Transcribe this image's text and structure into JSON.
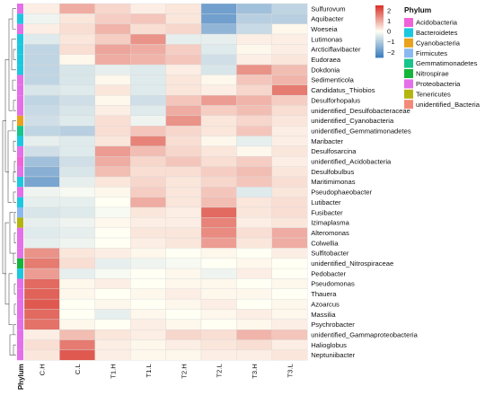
{
  "chart_data": {
    "type": "heatmap",
    "columns": [
      "C.H",
      "C.L",
      "T1.H",
      "T1.L",
      "T2.H",
      "T2.L",
      "T3.H",
      "T3.L"
    ],
    "annotation_label": "Phylum",
    "rows": [
      "Sulfurovum",
      "Aquibacter",
      "Woeseia",
      "Lutimonas",
      "Arcticiflavibacter",
      "Eudoraea",
      "Dokdonia",
      "Sedimenticola",
      "Candidatus_Thiobios",
      "Desulforhopalus",
      "unidentified_Desulfobacteraceae",
      "unidentified_Cyanobacteria",
      "unidentified_Gemmatimonadetes",
      "Maribacter",
      "Desulfosarcina",
      "unidentified_Acidobacteria",
      "Desulfobulbus",
      "Maritimimonas",
      "Pseudophaeobacter",
      "Lutibacter",
      "Fusibacter",
      "Izimaplasma",
      "Alteromonas",
      "Colwellia",
      "Sulfitobacter",
      "unidentified_Nitrospiraceae",
      "Pedobacter",
      "Pseudomonas",
      "Thauera",
      "Azoarcus",
      "Massilia",
      "Psychrobacter",
      "unidentified_Gammaproteobacteria",
      "Halioglobus",
      "Neptuniibacter"
    ],
    "values": [
      [
        0.2,
        1.0,
        0.5,
        0.2,
        0.3,
        -1.8,
        -1.2,
        -0.8
      ],
      [
        -0.2,
        0.3,
        0.6,
        0.7,
        0.3,
        -1.8,
        -0.9,
        -0.9
      ],
      [
        0.2,
        0.4,
        0.9,
        0.4,
        0.5,
        -1.4,
        -0.7,
        0.1
      ],
      [
        -0.4,
        0.3,
        0.6,
        1.3,
        -0.3,
        -0.3,
        0.2,
        0.2
      ],
      [
        -0.8,
        0.4,
        1.1,
        1.0,
        0.6,
        -0.4,
        0.1,
        0.2
      ],
      [
        -0.8,
        0.1,
        1.0,
        0.9,
        0.7,
        -0.6,
        0.2,
        0.3
      ],
      [
        -0.8,
        -0.5,
        -0.3,
        -0.4,
        0.2,
        -0.5,
        1.3,
        0.8
      ],
      [
        -0.8,
        -0.5,
        0.1,
        -0.4,
        0.3,
        0.1,
        0.7,
        0.9
      ],
      [
        -0.5,
        -0.4,
        0.3,
        -0.4,
        0.3,
        0.2,
        0.5,
        1.6
      ],
      [
        -0.8,
        -0.6,
        0.1,
        -0.6,
        0.7,
        1.2,
        0.9,
        0.6
      ],
      [
        -0.7,
        -0.5,
        0.2,
        -0.4,
        1.0,
        0.6,
        0.8,
        0.4
      ],
      [
        -0.6,
        -0.4,
        0.4,
        -0.2,
        1.3,
        0.3,
        0.5,
        0.3
      ],
      [
        -0.8,
        -0.9,
        0.4,
        0.7,
        0.5,
        0.3,
        0.7,
        0.2
      ],
      [
        -0.3,
        -0.4,
        0.3,
        1.5,
        0.4,
        0.1,
        -0.3,
        0.2
      ],
      [
        -0.6,
        -0.4,
        1.2,
        0.8,
        0.5,
        0.3,
        0.1,
        0.3
      ],
      [
        -1.2,
        -0.6,
        1.0,
        0.5,
        0.7,
        0.4,
        0.6,
        0.2
      ],
      [
        -1.5,
        -0.5,
        0.8,
        0.4,
        0.4,
        0.6,
        0.8,
        0.3
      ],
      [
        -1.7,
        -0.3,
        0.3,
        0.5,
        0.3,
        0.5,
        0.7,
        0.4
      ],
      [
        -0.2,
        -0.1,
        0.1,
        0.6,
        0.3,
        0.7,
        -0.4,
        0.3
      ],
      [
        -0.3,
        -0.3,
        0.0,
        1.0,
        0.3,
        0.8,
        0.3,
        0.4
      ],
      [
        -0.5,
        -0.4,
        -0.1,
        0.3,
        0.2,
        1.8,
        0.3,
        0.4
      ],
      [
        -0.3,
        -0.2,
        0.1,
        0.2,
        0.2,
        1.5,
        0.2,
        0.3
      ],
      [
        -0.4,
        -0.3,
        0.0,
        0.3,
        0.3,
        1.4,
        0.4,
        1.0
      ],
      [
        -0.3,
        -0.2,
        0.0,
        0.2,
        0.3,
        1.2,
        0.3,
        1.0
      ],
      [
        1.3,
        0.3,
        0.2,
        0.1,
        0.0,
        0.1,
        0.0,
        0.2
      ],
      [
        1.6,
        0.4,
        -0.3,
        -0.2,
        -0.1,
        0.0,
        0.1,
        0.0
      ],
      [
        1.2,
        -0.3,
        -0.1,
        0.0,
        0.1,
        -0.2,
        0.2,
        0.0
      ],
      [
        1.8,
        0.1,
        0.2,
        0.0,
        0.1,
        0.1,
        0.0,
        0.1
      ],
      [
        1.9,
        0.1,
        0.0,
        0.1,
        0.2,
        0.1,
        0.1,
        0.0
      ],
      [
        2.0,
        0.0,
        0.1,
        0.0,
        0.1,
        0.2,
        0.0,
        0.1
      ],
      [
        1.8,
        0.0,
        -0.3,
        0.1,
        0.0,
        0.1,
        0.2,
        0.1
      ],
      [
        1.7,
        0.1,
        0.0,
        0.2,
        0.1,
        0.0,
        0.1,
        0.2
      ],
      [
        0.2,
        0.8,
        0.3,
        0.2,
        0.5,
        0.4,
        0.9,
        0.7
      ],
      [
        0.4,
        1.6,
        0.2,
        0.1,
        0.2,
        0.3,
        0.4,
        0.2
      ],
      [
        0.3,
        2.0,
        0.2,
        0.1,
        0.1,
        0.2,
        0.2,
        0.3
      ]
    ],
    "row_phylum": [
      "Proteobacteria",
      "Bacteroidetes",
      "Proteobacteria",
      "Bacteroidetes",
      "Bacteroidetes",
      "Bacteroidetes",
      "Bacteroidetes",
      "Proteobacteria",
      "Proteobacteria",
      "Proteobacteria",
      "Proteobacteria",
      "Cyanobacteria",
      "Gemmatimonadetes",
      "Bacteroidetes",
      "Proteobacteria",
      "Acidobacteria",
      "Proteobacteria",
      "Bacteroidetes",
      "Proteobacteria",
      "Bacteroidetes",
      "Firmicutes",
      "Tenericutes",
      "Proteobacteria",
      "Proteobacteria",
      "Proteobacteria",
      "Nitrospirae",
      "Bacteroidetes",
      "Proteobacteria",
      "Proteobacteria",
      "Proteobacteria",
      "Proteobacteria",
      "Proteobacteria",
      "Proteobacteria",
      "Proteobacteria",
      "Proteobacteria"
    ],
    "color_scale": {
      "min": -2.5,
      "max": 2.5,
      "low": "#3a7bbf",
      "mid": "#fffff4",
      "high": "#d73027",
      "ticks": [
        2,
        1,
        0,
        -1,
        -2
      ],
      "tick_labels": [
        "2",
        "1",
        "0",
        "−1",
        "−2"
      ]
    },
    "legend": {
      "title": "Phylum",
      "items": [
        {
          "name": "Acidobacteria",
          "color": "#f062d8"
        },
        {
          "name": "Bacteroidetes",
          "color": "#1cc7e0"
        },
        {
          "name": "Cyanobacteria",
          "color": "#e8a21c"
        },
        {
          "name": "Firmicutes",
          "color": "#8ab8f0"
        },
        {
          "name": "Gemmatimonadetes",
          "color": "#17c48a"
        },
        {
          "name": "Nitrospirae",
          "color": "#14b53a"
        },
        {
          "name": "Proteobacteria",
          "color": "#e46fe8"
        },
        {
          "name": "Tenericutes",
          "color": "#b3b40e"
        },
        {
          "name": "unidentified_Bacteria",
          "color": "#f48a7a"
        }
      ]
    }
  }
}
